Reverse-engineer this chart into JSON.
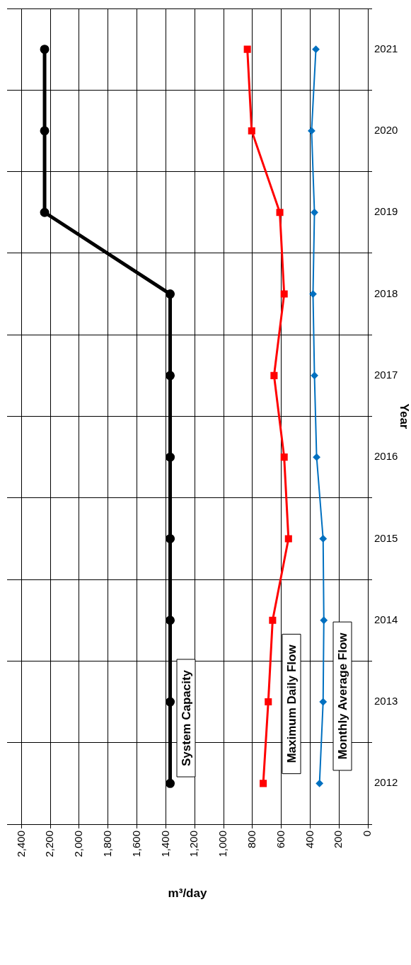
{
  "chart_data": {
    "type": "line",
    "orientation": "horizontal",
    "xlabel": "m³/day",
    "ylabel": "Year",
    "categories": [
      "2021",
      "2020",
      "2019",
      "2018",
      "2017",
      "2016",
      "2015",
      "2014",
      "2013",
      "2012"
    ],
    "series": [
      {
        "name": "System Capacity",
        "color": "#000000",
        "marker": "circle",
        "values": [
          2240,
          2240,
          2240,
          1370,
          1370,
          1370,
          1370,
          1370,
          1370,
          1370
        ]
      },
      {
        "name": "Maximum Daily Flow",
        "color": "#ff0000",
        "marker": "square",
        "values": [
          835,
          805,
          610,
          580,
          650,
          580,
          550,
          660,
          690,
          725
        ]
      },
      {
        "name": "Monthly Average Flow",
        "color": "#0070c0",
        "marker": "diamond",
        "values": [
          360,
          390,
          370,
          380,
          370,
          355,
          310,
          305,
          310,
          335
        ]
      }
    ],
    "xlim": [
      2500,
      0
    ],
    "xticks": [
      0,
      200,
      400,
      600,
      800,
      {
        "value": 1000,
        "label": "1,000"
      },
      {
        "value": 1200,
        "label": "1,200"
      },
      {
        "value": 1400,
        "label": "1,400"
      },
      {
        "value": 1600,
        "label": "1,600"
      },
      {
        "value": 1800,
        "label": "1,800"
      },
      {
        "value": 2000,
        "label": "2,000"
      },
      {
        "value": 2200,
        "label": "2,200"
      },
      {
        "value": 2400,
        "label": "2,400"
      }
    ],
    "grid": true,
    "legend": false
  }
}
